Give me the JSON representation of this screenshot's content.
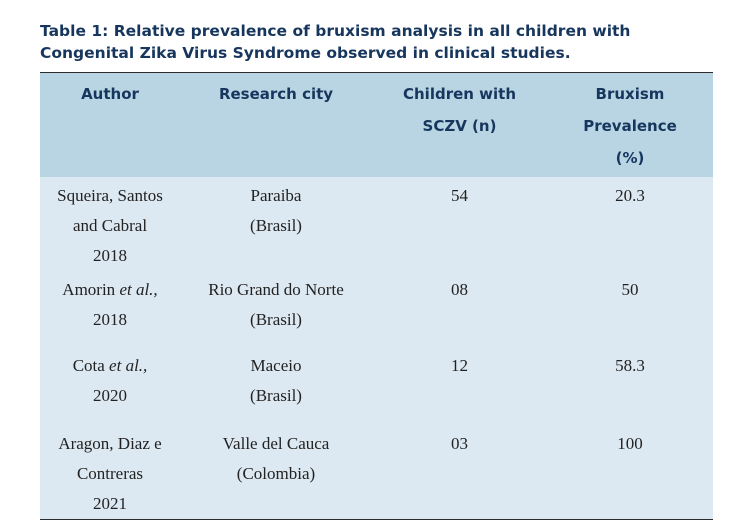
{
  "caption": {
    "line1": "Table 1: Relative prevalence of bruxism analysis in all children with",
    "line2": "Congenital Zika Virus Syndrome observed in clinical studies."
  },
  "table": {
    "headers": [
      {
        "lines": [
          "Author"
        ]
      },
      {
        "lines": [
          "Research city"
        ]
      },
      {
        "lines": [
          "Children with",
          "SCZV (n)"
        ]
      },
      {
        "lines": [
          "Bruxism",
          "Prevalence",
          "(%)"
        ]
      }
    ],
    "rows": [
      {
        "author_lines": [
          "Squeira, Santos",
          "and Cabral",
          "2018"
        ],
        "city_lines": [
          "Paraiba",
          "(Brasil)"
        ],
        "children": "54",
        "prevalence": "20.3"
      },
      {
        "author_name": "Amorin",
        "author_suffix": "et al.,",
        "author_year": "2018",
        "city_lines": [
          "Rio Grand do Norte",
          "(Brasil)"
        ],
        "children": "08",
        "prevalence": "50"
      },
      {
        "author_name": "Cota",
        "author_suffix": "et al.,",
        "author_year": "2020",
        "city_lines": [
          "Maceio",
          "(Brasil)"
        ],
        "children": "12",
        "prevalence": "58.3"
      },
      {
        "author_lines": [
          "Aragon, Diaz e",
          "Contreras",
          "2021"
        ],
        "city_lines": [
          "Valle del Cauca",
          "(Colombia)"
        ],
        "children": "03",
        "prevalence": "100"
      }
    ]
  }
}
